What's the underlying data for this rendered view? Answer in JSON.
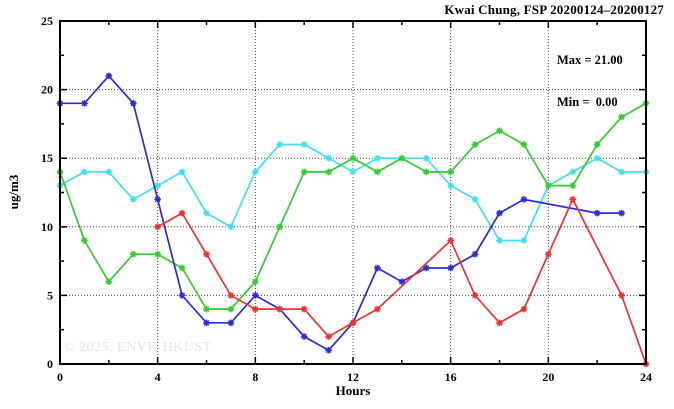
{
  "title": "Kwai Chung, FSP 20200124–20200127",
  "watermark": "© 2025, ENVF, HKUST",
  "stats": {
    "max_label": "Max = 21.00",
    "min_label": "Min =  0.00"
  },
  "colors": {
    "background": "#ffffff",
    "axis": "#000000",
    "grid": "#444444",
    "watermark_text": "#e4e4e4"
  },
  "chart_data": {
    "type": "line",
    "title": "Kwai Chung, FSP 20200124–20200127",
    "xlabel": "Hours",
    "ylabel": "ug/m3",
    "xlim": [
      0,
      24
    ],
    "ylim": [
      0,
      25
    ],
    "x_major_ticks": [
      0,
      4,
      8,
      12,
      16,
      20,
      24
    ],
    "x_minor_tick_step": 2,
    "y_major_ticks": [
      0,
      5,
      10,
      15,
      20,
      25
    ],
    "y_minor_tick_step": 2.5,
    "grid": "dotted at major ticks",
    "legend": "none",
    "annotations": [
      "Max = 21.00",
      "Min =  0.00"
    ],
    "marker": "asterisk",
    "series": [
      {
        "name": "cyan",
        "color": "#42dff0",
        "points": [
          [
            0,
            13
          ],
          [
            1,
            14
          ],
          [
            2,
            14
          ],
          [
            3,
            12
          ],
          [
            4,
            13
          ],
          [
            5,
            14
          ],
          [
            6,
            11
          ],
          [
            7,
            10
          ],
          [
            8,
            14
          ],
          [
            9,
            16
          ],
          [
            10,
            16
          ],
          [
            11,
            15
          ],
          [
            12,
            14
          ],
          [
            13,
            15
          ],
          [
            14,
            15
          ],
          [
            15,
            15
          ],
          [
            16,
            13
          ],
          [
            17,
            12
          ],
          [
            18,
            9
          ],
          [
            19,
            9
          ],
          [
            20,
            13
          ],
          [
            21,
            14
          ],
          [
            22,
            15
          ],
          [
            23,
            14
          ],
          [
            24,
            14
          ]
        ]
      },
      {
        "name": "green",
        "color": "#33cc33",
        "points": [
          [
            0,
            14
          ],
          [
            1,
            9
          ],
          [
            2,
            6
          ],
          [
            3,
            8
          ],
          [
            4,
            8
          ],
          [
            5,
            7
          ],
          [
            6,
            4
          ],
          [
            7,
            4
          ],
          [
            8,
            6
          ],
          [
            9,
            10
          ],
          [
            10,
            14
          ],
          [
            11,
            14
          ],
          [
            12,
            15
          ],
          [
            13,
            14
          ],
          [
            14,
            15
          ],
          [
            15,
            14
          ],
          [
            16,
            14
          ],
          [
            17,
            16
          ],
          [
            18,
            17
          ],
          [
            19,
            16
          ],
          [
            20,
            13
          ],
          [
            21,
            13
          ],
          [
            22,
            16
          ],
          [
            23,
            18
          ],
          [
            24,
            19
          ]
        ]
      },
      {
        "name": "blue",
        "color": "#2a2ade",
        "points": [
          [
            0,
            19
          ],
          [
            1,
            19
          ],
          [
            2,
            21
          ],
          [
            3,
            19
          ],
          [
            4,
            12
          ],
          [
            5,
            5
          ],
          [
            6,
            3
          ],
          [
            7,
            3
          ],
          [
            8,
            5
          ],
          [
            9,
            4
          ],
          [
            10,
            2
          ],
          [
            11,
            1
          ],
          [
            12,
            3
          ],
          [
            13,
            7
          ],
          [
            14,
            6
          ],
          [
            15,
            7
          ],
          [
            16,
            7
          ],
          [
            17,
            8
          ],
          [
            18,
            11
          ],
          [
            19,
            12
          ],
          [
            22,
            11
          ],
          [
            23,
            11
          ]
        ]
      },
      {
        "name": "red",
        "color": "#f03030",
        "points": [
          [
            4,
            10
          ],
          [
            5,
            11
          ],
          [
            6,
            8
          ],
          [
            7,
            5
          ],
          [
            8,
            4
          ],
          [
            9,
            4
          ],
          [
            10,
            4
          ],
          [
            11,
            2
          ],
          [
            12,
            3
          ],
          [
            13,
            4
          ],
          [
            16,
            9
          ],
          [
            17,
            5
          ],
          [
            18,
            3
          ],
          [
            19,
            4
          ],
          [
            20,
            8
          ],
          [
            21,
            12
          ],
          [
            23,
            5
          ],
          [
            24,
            0
          ]
        ]
      }
    ]
  }
}
